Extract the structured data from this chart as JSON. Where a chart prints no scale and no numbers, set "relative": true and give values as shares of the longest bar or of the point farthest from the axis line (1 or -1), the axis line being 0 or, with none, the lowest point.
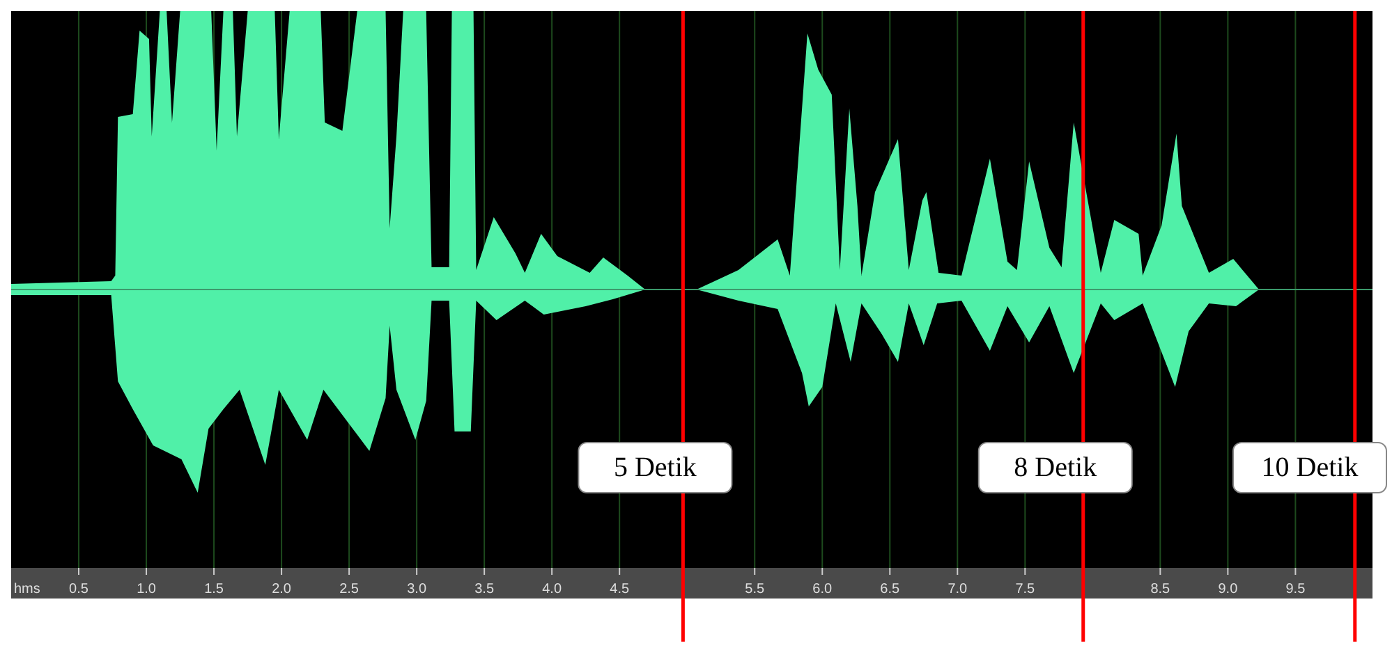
{
  "chart_data": {
    "type": "area",
    "relative": true,
    "xlabel": "hms",
    "xlim": [
      0,
      10.07
    ],
    "xticks": [
      {
        "value": 0.5,
        "label": "0.5"
      },
      {
        "value": 1,
        "label": "1.0"
      },
      {
        "value": 1.5,
        "label": "1.5"
      },
      {
        "value": 2,
        "label": "2.0"
      },
      {
        "value": 2.5,
        "label": "2.5"
      },
      {
        "value": 3,
        "label": "3.0"
      },
      {
        "value": 3.5,
        "label": "3.5"
      },
      {
        "value": 4,
        "label": "4.0"
      },
      {
        "value": 4.5,
        "label": "4.5"
      },
      {
        "value": 5.5,
        "label": "5.5"
      },
      {
        "value": 6,
        "label": "6.0"
      },
      {
        "value": 6.5,
        "label": "6.5"
      },
      {
        "value": 7,
        "label": "7.0"
      },
      {
        "value": 7.5,
        "label": "7.5"
      },
      {
        "value": 8.5,
        "label": "8.5"
      },
      {
        "value": 9,
        "label": "9.0"
      },
      {
        "value": 9.5,
        "label": "9.5"
      }
    ],
    "grid": "x",
    "series": [
      {
        "color": "#50f0a8",
        "x": [
          0,
          0.74,
          0.77,
          0.79,
          0.9,
          0.95,
          1.02,
          1.04,
          1.1,
          1.15,
          1.19,
          1.25,
          1.48,
          1.52,
          1.57,
          1.64,
          1.67,
          1.75,
          1.95,
          1.98,
          2.06,
          2.29,
          2.32,
          2.45,
          2.56,
          2.77,
          2.8,
          2.85,
          2.9,
          3.07,
          3.11,
          3.24,
          3.26,
          3.42,
          3.44,
          3.57,
          3.73,
          3.8,
          3.92,
          4.04,
          4.28,
          4.38,
          4.56,
          4.69,
          4.9,
          5.07,
          5.38,
          5.67,
          5.76,
          5.85,
          5.89,
          5.97,
          6.07,
          6.13,
          6.2,
          6.26,
          6.29,
          6.39,
          6.56,
          6.64,
          6.74,
          6.77,
          6.86,
          7.03,
          7.24,
          7.37,
          7.44,
          7.53,
          7.68,
          7.77,
          7.86,
          8.06,
          8.16,
          8.34,
          8.37,
          8.51,
          8.62,
          8.66,
          8.86,
          9.04,
          9.23,
          10.07
        ],
        "values": [
          0.02,
          0.03,
          0.05,
          0.62,
          0.63,
          0.93,
          0.9,
          0.55,
          1,
          1,
          0.6,
          1,
          1,
          0.5,
          1,
          1,
          0.55,
          1,
          1,
          0.54,
          1,
          1,
          0.6,
          0.57,
          1,
          1,
          0.22,
          0.55,
          1,
          1,
          0.08,
          0.08,
          1,
          1,
          0.07,
          0.26,
          0.13,
          0.06,
          0.2,
          0.12,
          0.06,
          0.115,
          0.05,
          0,
          0,
          0,
          0.07,
          0.18,
          0.05,
          0.65,
          0.92,
          0.79,
          0.7,
          0.07,
          0.65,
          0.3,
          0.05,
          0.35,
          0.54,
          0.07,
          0.32,
          0.35,
          0.06,
          0.05,
          0.47,
          0.1,
          0.07,
          0.46,
          0.15,
          0.08,
          0.6,
          0.06,
          0.25,
          0.2,
          0.05,
          0.23,
          0.56,
          0.3,
          0.06,
          0.11,
          0,
          0
        ]
      },
      {
        "color": "#50f0a8",
        "x": [
          0,
          0.74,
          0.79,
          0.9,
          1.05,
          1.26,
          1.38,
          1.46,
          1.57,
          1.69,
          1.88,
          1.98,
          2.19,
          2.31,
          2.65,
          2.77,
          2.8,
          2.85,
          2.99,
          3.07,
          3.11,
          3.24,
          3.28,
          3.4,
          3.44,
          3.59,
          3.8,
          3.94,
          4.25,
          4.45,
          4.69,
          4.9,
          5.07,
          5.38,
          5.67,
          5.85,
          5.9,
          6,
          6.1,
          6.21,
          6.29,
          6.44,
          6.56,
          6.64,
          6.75,
          6.85,
          7.03,
          7.24,
          7.37,
          7.53,
          7.68,
          7.86,
          8.06,
          8.16,
          8.37,
          8.61,
          8.71,
          8.86,
          9.06,
          9.23,
          10.07
        ],
        "values": [
          -0.02,
          -0.02,
          -0.33,
          -0.43,
          -0.56,
          -0.61,
          -0.73,
          -0.5,
          -0.43,
          -0.36,
          -0.63,
          -0.36,
          -0.54,
          -0.36,
          -0.58,
          -0.39,
          -0.13,
          -0.36,
          -0.54,
          -0.4,
          -0.04,
          -0.04,
          -0.51,
          -0.51,
          -0.04,
          -0.11,
          -0.04,
          -0.09,
          -0.06,
          -0.035,
          0,
          0,
          0,
          -0.04,
          -0.07,
          -0.3,
          -0.42,
          -0.35,
          -0.05,
          -0.26,
          -0.05,
          -0.16,
          -0.26,
          -0.05,
          -0.2,
          -0.05,
          -0.04,
          -0.22,
          -0.06,
          -0.19,
          -0.06,
          -0.3,
          -0.05,
          -0.11,
          -0.05,
          -0.35,
          -0.15,
          -0.05,
          -0.06,
          0,
          0
        ]
      }
    ],
    "ref_lines": [
      {
        "axis": "x",
        "value": 4.97,
        "label": "5 Detik",
        "color": "#ff0000"
      },
      {
        "axis": "x",
        "value": 7.93,
        "label": "8 Detik",
        "color": "#ff0000"
      },
      {
        "axis": "x",
        "value": 9.94,
        "label": "10 Detik",
        "color": "#ff0000"
      }
    ]
  }
}
